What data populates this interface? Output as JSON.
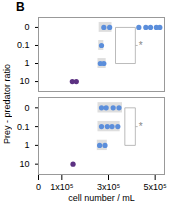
{
  "chart_data": [
    {
      "type": "scatter",
      "title": "B",
      "ylabel": "Prey - predator ratio",
      "categories": [
        "0",
        "0.1",
        "1",
        "10"
      ],
      "xlim": [
        0,
        540000
      ],
      "tick_labels": "y",
      "ranges": [
        {
          "category": "0",
          "x": [
            260000,
            315000
          ]
        },
        {
          "category": "0.1",
          "x": [
            258000,
            280000
          ]
        },
        {
          "category": "1",
          "x": [
            255000,
            290000
          ]
        }
      ],
      "series": [
        {
          "color": "#5b8edb",
          "points": [
            {
              "category": "0",
              "x": 280000
            },
            {
              "category": "0",
              "x": 305000
            },
            {
              "category": "0.1",
              "x": 270000
            },
            {
              "category": "1",
              "x": 265000
            },
            {
              "category": "1",
              "x": 280000
            }
          ]
        },
        {
          "color": "#5b8edb",
          "points": [
            {
              "category": "0",
              "x": 430000
            },
            {
              "category": "0",
              "x": 460000
            },
            {
              "category": "0",
              "x": 480000
            },
            {
              "category": "0",
              "x": 505000
            },
            {
              "category": "0",
              "x": 520000
            }
          ]
        },
        {
          "color": "#5c3182",
          "points": [
            {
              "category": "10",
              "x": 145000
            },
            {
              "category": "10",
              "x": 162000
            }
          ]
        }
      ],
      "bracket": {
        "x": [
          330000,
          415000
        ],
        "categories": [
          "0",
          "0.1",
          "1"
        ]
      },
      "annotations": [
        {
          "text": "*",
          "x": 425000,
          "category": "0.1"
        }
      ]
    },
    {
      "type": "scatter",
      "xlabel": "cell number / mL",
      "categories": [
        "0",
        "0.1",
        "1",
        "10"
      ],
      "xlim": [
        0,
        540000
      ],
      "xticks": [
        0,
        {
          "value": 100000,
          "label": "1x10⁵"
        },
        {
          "value": 300000,
          "label": "3x10⁵"
        },
        {
          "value": 500000,
          "label": "5x10⁵"
        }
      ],
      "ranges": [
        {
          "category": "0",
          "x": [
            255000,
            360000
          ]
        },
        {
          "category": "0.1",
          "x": [
            255000,
            350000
          ]
        },
        {
          "category": "1",
          "x": [
            252000,
            295000
          ]
        }
      ],
      "series": [
        {
          "color": "#5b8edb",
          "points": [
            {
              "category": "0",
              "x": 270000
            },
            {
              "category": "0",
              "x": 290000
            },
            {
              "category": "0",
              "x": 320000
            },
            {
              "category": "0",
              "x": 345000
            },
            {
              "category": "0.1",
              "x": 270000
            },
            {
              "category": "0.1",
              "x": 295000
            },
            {
              "category": "0.1",
              "x": 315000
            },
            {
              "category": "0.1",
              "x": 340000
            },
            {
              "category": "1",
              "x": 262000
            },
            {
              "category": "1",
              "x": 285000
            }
          ]
        },
        {
          "color": "#5c3182",
          "points": [
            {
              "category": "10",
              "x": 148000
            }
          ]
        }
      ],
      "bracket": {
        "x": [
          370000,
          415000
        ],
        "categories": [
          "0",
          "0.1",
          "1"
        ]
      },
      "annotations": [
        {
          "text": "*",
          "x": 425000,
          "category": "0.1"
        }
      ]
    }
  ]
}
